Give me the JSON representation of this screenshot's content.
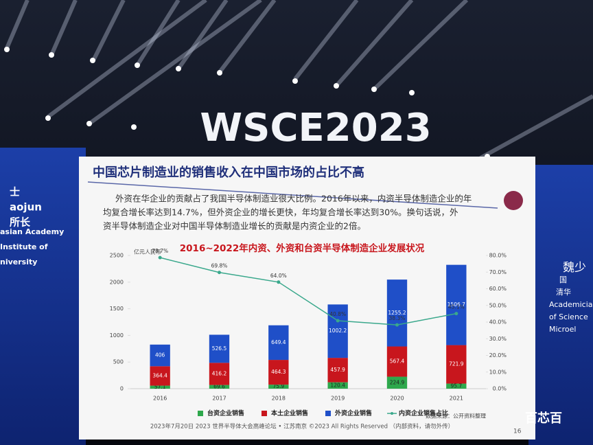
{
  "stage": {
    "banner": "WSCE2023",
    "left_text": [
      "士",
      "aojun",
      "所长",
      "asian Academy",
      "Institute of",
      "niversity"
    ],
    "right_text": [
      "魏少",
      "国",
      "清华",
      "Academician",
      "of Science",
      "Microel"
    ]
  },
  "slide": {
    "title": "中国芯片制造业的销售收入在中国市场的占比不高",
    "paragraph": [
      "外资在华企业的贡献占了我国半导体制造业很大比例。2016年以来，内资半导体制造企业的年",
      "均复合增长率达到14.7%，但外资企业的增长更快，年均复合增长率达到30%。换句话说，外",
      "资半导体制造企业对中国半导体制造业增长的贡献是内资企业的2倍。"
    ],
    "footer": "2023年7月20日 2023 世界半导体大会高峰论坛 • 江苏南京 ©2023 All Rights Reserved （内部资料，请勿外传）",
    "page": "16"
  },
  "watermark": "百芯百",
  "chart_data": {
    "type": "bar",
    "stacked": true,
    "title": "2016~2022年内资、外资和台资半导体制造企业发展状况",
    "unit_label": "亿元人民币",
    "source": "数据来源：公开资料整理",
    "categories": [
      "2016",
      "2017",
      "2018",
      "2019",
      "2020",
      "2021"
    ],
    "series": [
      {
        "name": "台资企业销售",
        "color": "#2ea84c",
        "values": [
          57.1,
          69.6,
          75.9,
          120.4,
          224.9,
          95.7
        ]
      },
      {
        "name": "本土企业销售",
        "color": "#c8161d",
        "values": [
          364.4,
          416.2,
          464.3,
          457.9,
          567.4,
          721.9
        ]
      },
      {
        "name": "外资企业销售",
        "color": "#1f4fc8",
        "values": [
          406,
          526.5,
          649.4,
          1002.2,
          1255.2,
          1506.7
        ]
      },
      {
        "name": "内资企业销售占比",
        "type": "line",
        "axis": "y2",
        "color": "#3aa88c",
        "values": [
          78.7,
          69.8,
          64.0,
          40.8,
          38.3,
          45.1
        ],
        "value_labels": [
          "78.7%",
          "69.8%",
          "64.0%",
          "40.8%",
          "38.3%",
          "45.1%"
        ]
      }
    ],
    "ylim": [
      0,
      2500
    ],
    "yticks": [
      0,
      500,
      1000,
      1500,
      2000,
      2500
    ],
    "y2lim": [
      0,
      80
    ],
    "y2ticks": [
      {
        "value": 0,
        "label": "0.0%"
      },
      {
        "value": 10,
        "label": "10.0%"
      },
      {
        "value": 20,
        "label": "20.0%"
      },
      {
        "value": 30,
        "label": "30.0%"
      },
      {
        "value": 40,
        "label": "40.0%"
      },
      {
        "value": 50,
        "label": "50.0%"
      },
      {
        "value": 60,
        "label": "60.0%"
      },
      {
        "value": 70,
        "label": "70.0%"
      },
      {
        "value": 80,
        "label": "80.0%"
      }
    ],
    "legend": "bottom"
  }
}
